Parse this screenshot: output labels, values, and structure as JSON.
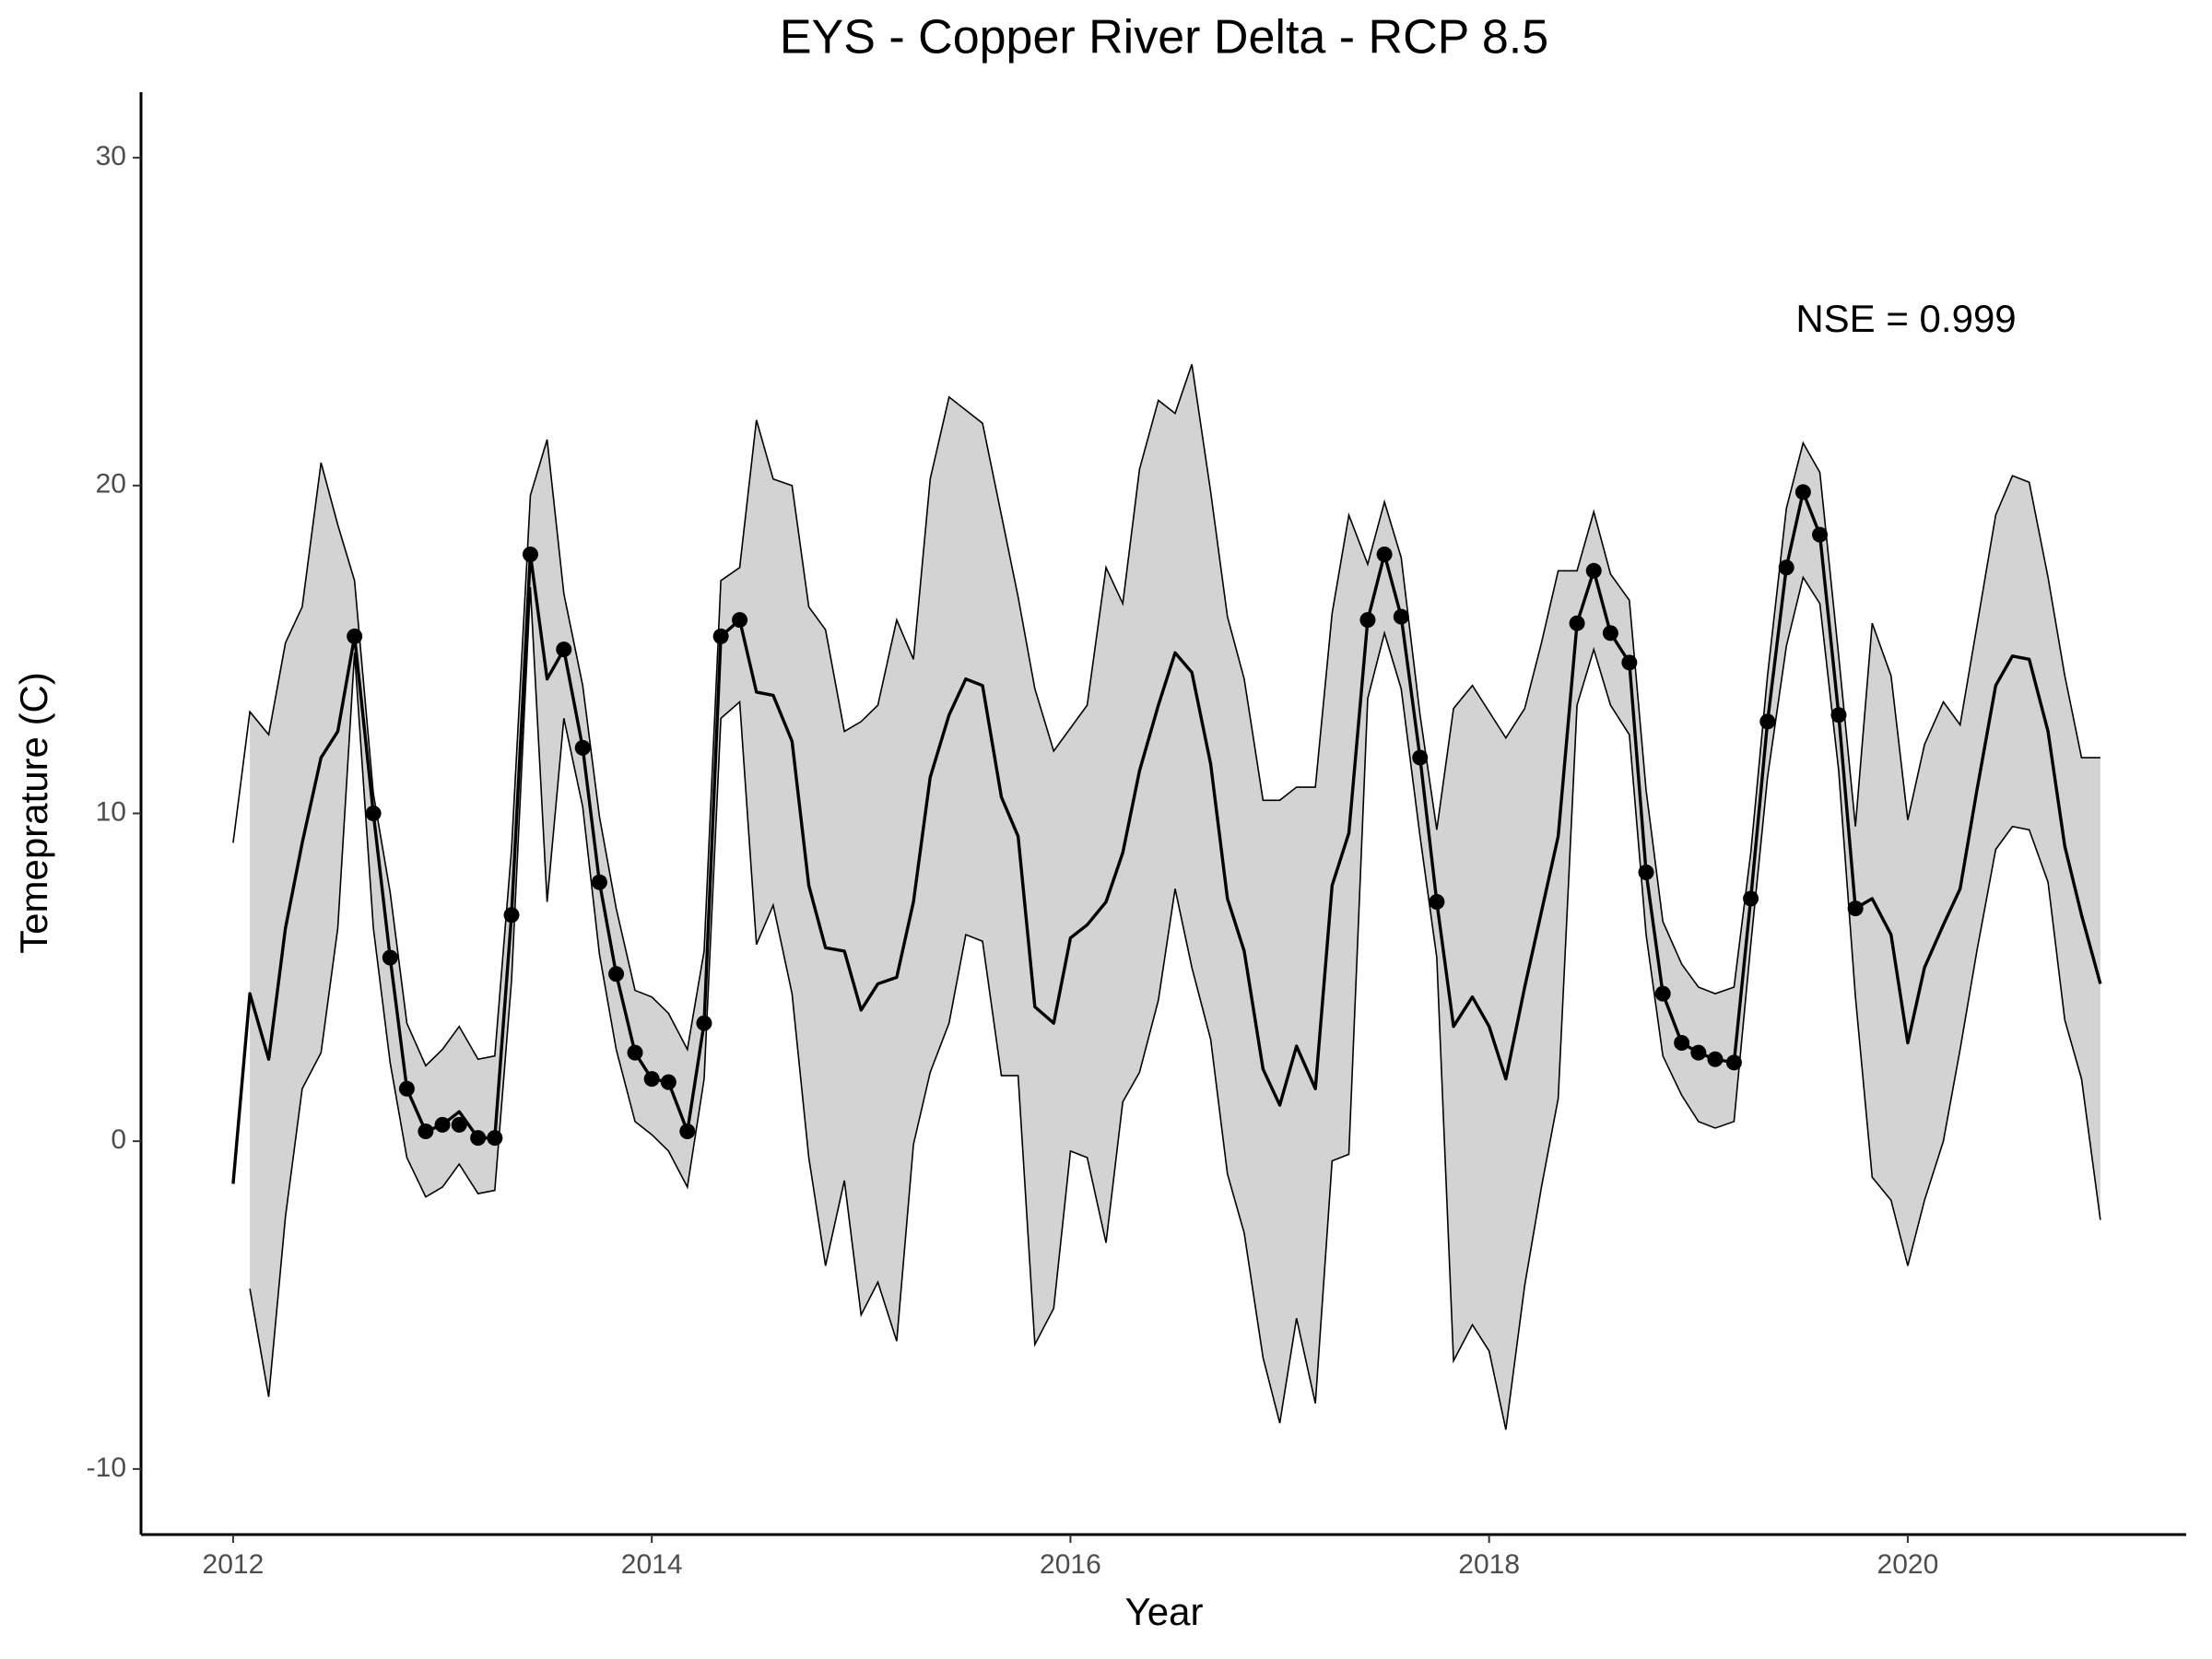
{
  "chart_data": {
    "type": "line",
    "title": "EYS - Copper River Delta - RCP 8.5",
    "x_label": "Year",
    "y_label": "Temeprature (C)",
    "annotation": "NSE = 0.999",
    "xlim": [
      2011.56,
      2021.33
    ],
    "ylim": [
      -12,
      32
    ],
    "xticks": [
      2012,
      2014,
      2016,
      2018,
      2020
    ],
    "yticks": [
      -10,
      0,
      10,
      20,
      30
    ],
    "grid": false,
    "x": [
      2012.0,
      2012.08,
      2012.17,
      2012.25,
      2012.33,
      2012.42,
      2012.5,
      2012.58,
      2012.67,
      2012.75,
      2012.83,
      2012.92,
      2013.0,
      2013.08,
      2013.17,
      2013.25,
      2013.33,
      2013.42,
      2013.5,
      2013.58,
      2013.67,
      2013.75,
      2013.83,
      2013.92,
      2014.0,
      2014.08,
      2014.17,
      2014.25,
      2014.33,
      2014.42,
      2014.5,
      2014.58,
      2014.67,
      2014.75,
      2014.83,
      2014.92,
      2015.0,
      2015.08,
      2015.17,
      2015.25,
      2015.33,
      2015.42,
      2015.5,
      2015.58,
      2015.67,
      2015.75,
      2015.83,
      2015.92,
      2016.0,
      2016.08,
      2016.17,
      2016.25,
      2016.33,
      2016.42,
      2016.5,
      2016.58,
      2016.67,
      2016.75,
      2016.83,
      2016.92,
      2017.0,
      2017.08,
      2017.17,
      2017.25,
      2017.33,
      2017.42,
      2017.5,
      2017.58,
      2017.67,
      2017.75,
      2017.83,
      2017.92,
      2018.0,
      2018.08,
      2018.17,
      2018.25,
      2018.33,
      2018.42,
      2018.5,
      2018.58,
      2018.67,
      2018.75,
      2018.83,
      2018.92,
      2019.0,
      2019.08,
      2019.17,
      2019.25,
      2019.33,
      2019.42,
      2019.5,
      2019.58,
      2019.67,
      2019.75,
      2019.83,
      2019.92,
      2020.0,
      2020.08,
      2020.17,
      2020.25,
      2020.33,
      2020.42,
      2020.5,
      2020.58,
      2020.67,
      2020.75,
      2020.83,
      2020.92
    ],
    "band": {
      "color": "#d3d3d3",
      "upper": [
        9.1,
        13.1,
        12.4,
        15.2,
        16.3,
        20.7,
        18.8,
        17.1,
        10.6,
        7.6,
        3.6,
        2.3,
        2.8,
        3.5,
        2.5,
        2.6,
        8.9,
        19.7,
        21.4,
        16.7,
        13.9,
        9.9,
        7.1,
        4.6,
        4.4,
        3.9,
        2.8,
        5.8,
        17.1,
        17.5,
        22.0,
        20.2,
        20.0,
        16.3,
        15.6,
        12.5,
        12.8,
        13.3,
        15.9,
        14.7,
        20.2,
        22.7,
        22.3,
        21.9,
        19.1,
        16.6,
        13.8,
        11.9,
        12.6,
        13.3,
        17.5,
        16.4,
        20.5,
        22.6,
        22.2,
        23.7,
        19.8,
        16.0,
        14.1,
        10.4,
        10.4,
        10.8,
        10.8,
        16.1,
        19.1,
        17.6,
        19.5,
        17.8,
        13.0,
        9.5,
        13.2,
        13.9,
        13.1,
        12.3,
        13.2,
        15.2,
        17.4,
        17.4,
        19.2,
        17.3,
        16.5,
        10.7,
        6.7,
        5.4,
        4.7,
        4.5,
        4.7,
        8.8,
        14.2,
        19.3,
        21.3,
        20.4,
        14.8,
        9.6,
        15.8,
        14.2,
        9.8,
        12.1,
        13.4,
        12.7,
        15.7,
        19.1,
        20.3,
        20.1,
        17.2,
        14.2,
        11.7,
        11.7
      ],
      "lower": [
        null,
        -4.5,
        -7.8,
        -2.3,
        1.6,
        2.7,
        6.5,
        14.9,
        6.5,
        2.4,
        -0.5,
        -1.7,
        -1.4,
        -0.7,
        -1.6,
        -1.5,
        4.9,
        16.9,
        7.3,
        12.9,
        10.2,
        5.7,
        2.8,
        0.6,
        0.2,
        -0.3,
        -1.4,
        1.9,
        12.9,
        13.4,
        6.0,
        7.2,
        4.5,
        -0.5,
        -3.8,
        -1.2,
        -5.3,
        -4.3,
        -6.1,
        -0.1,
        2.1,
        3.6,
        6.3,
        6.1,
        2.0,
        2.0,
        -6.2,
        -5.1,
        -0.3,
        -0.5,
        -3.1,
        1.2,
        2.1,
        4.3,
        7.7,
        5.3,
        3.1,
        -1.0,
        -2.8,
        -6.6,
        -8.6,
        -5.4,
        -8.0,
        -0.6,
        -0.4,
        13.5,
        15.5,
        13.8,
        9.3,
        5.6,
        -6.7,
        -5.6,
        -6.4,
        -8.8,
        -4.4,
        -1.4,
        1.3,
        13.3,
        15.0,
        13.3,
        12.4,
        6.3,
        2.6,
        1.4,
        0.6,
        0.4,
        0.6,
        6.0,
        11.1,
        15.1,
        17.2,
        16.4,
        11.3,
        4.4,
        -1.1,
        -1.8,
        -3.8,
        -1.8,
        0.0,
        2.8,
        5.8,
        8.9,
        9.6,
        9.5,
        7.9,
        3.7,
        1.9,
        -2.4
      ]
    },
    "series": [
      {
        "color": "#000000",
        "marker": "none",
        "values": [
          -1.3,
          4.5,
          2.5,
          6.5,
          9.1,
          11.7,
          12.5,
          15.4,
          10.0,
          5.6,
          1.6,
          0.3,
          0.5,
          0.9,
          0.1,
          0.1,
          6.9,
          17.9,
          14.1,
          15.0,
          12.0,
          7.9,
          5.1,
          2.7,
          1.9,
          1.8,
          0.3,
          3.6,
          15.4,
          15.9,
          13.7,
          13.6,
          12.2,
          7.8,
          5.9,
          5.8,
          4.0,
          4.8,
          5.0,
          7.3,
          11.1,
          13.0,
          14.1,
          13.9,
          10.5,
          9.3,
          4.1,
          3.6,
          6.2,
          6.6,
          7.3,
          8.8,
          11.3,
          13.3,
          14.9,
          14.3,
          11.5,
          7.4,
          5.8,
          2.2,
          1.1,
          2.9,
          1.6,
          7.8,
          9.4,
          15.9,
          17.9,
          16.0,
          11.7,
          7.3,
          3.5,
          4.4,
          3.5,
          1.9,
          4.7,
          7.0,
          9.3,
          15.8,
          17.4,
          15.5,
          14.6,
          8.2,
          4.5,
          3.0,
          2.7,
          2.5,
          2.4,
          7.4,
          12.8,
          17.5,
          19.8,
          18.5,
          13.0,
          7.1,
          7.4,
          6.3,
          3.0,
          5.3,
          6.6,
          7.7,
          10.7,
          13.9,
          14.8,
          14.7,
          12.5,
          9.0,
          6.9,
          4.8
        ]
      },
      {
        "color": "#000000",
        "marker": "circle",
        "values": [
          null,
          null,
          null,
          null,
          null,
          null,
          null,
          15.4,
          10.0,
          5.6,
          1.6,
          0.3,
          0.5,
          0.5,
          0.1,
          0.1,
          6.9,
          17.9,
          null,
          15.0,
          12.0,
          7.9,
          5.1,
          2.7,
          1.9,
          1.8,
          0.3,
          3.6,
          15.4,
          15.9,
          null,
          null,
          null,
          null,
          null,
          null,
          null,
          null,
          null,
          null,
          null,
          null,
          null,
          null,
          null,
          null,
          null,
          null,
          null,
          null,
          null,
          null,
          null,
          null,
          null,
          null,
          null,
          null,
          null,
          null,
          null,
          null,
          null,
          null,
          null,
          15.9,
          17.9,
          16.0,
          11.7,
          7.3,
          null,
          null,
          null,
          null,
          null,
          null,
          null,
          15.8,
          17.4,
          15.5,
          14.6,
          8.2,
          4.5,
          3.0,
          2.7,
          2.5,
          2.4,
          7.4,
          12.8,
          17.5,
          19.8,
          18.5,
          13.0,
          7.1,
          null,
          null,
          null,
          null,
          null,
          null,
          null,
          null,
          null,
          null,
          null,
          null,
          null,
          null
        ]
      }
    ]
  }
}
